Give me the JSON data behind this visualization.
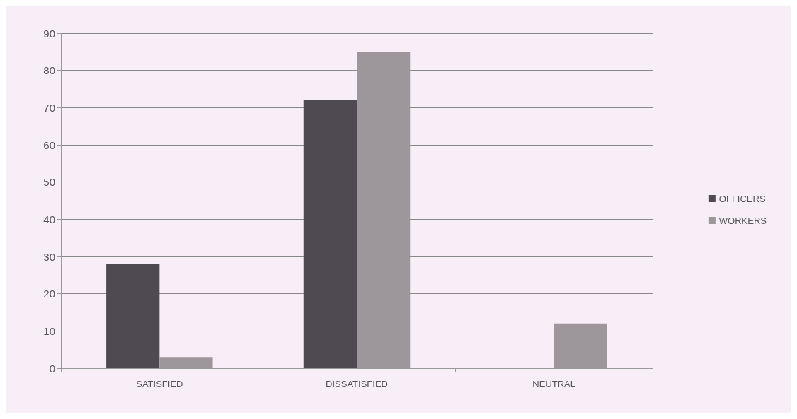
{
  "chart_data": {
    "type": "bar",
    "categories": [
      "SATISFIED",
      "DISSATISFIED",
      "NEUTRAL"
    ],
    "series": [
      {
        "name": "OFFICERS",
        "color": "#4f4a51",
        "values": [
          28,
          72,
          0
        ]
      },
      {
        "name": "WORKERS",
        "color": "#9d979c",
        "values": [
          3,
          85,
          12
        ]
      }
    ],
    "ylim": [
      0,
      90
    ],
    "yticks": [
      0,
      10,
      20,
      30,
      40,
      50,
      60,
      70,
      80,
      90
    ],
    "grid": "y",
    "legend": "right"
  }
}
